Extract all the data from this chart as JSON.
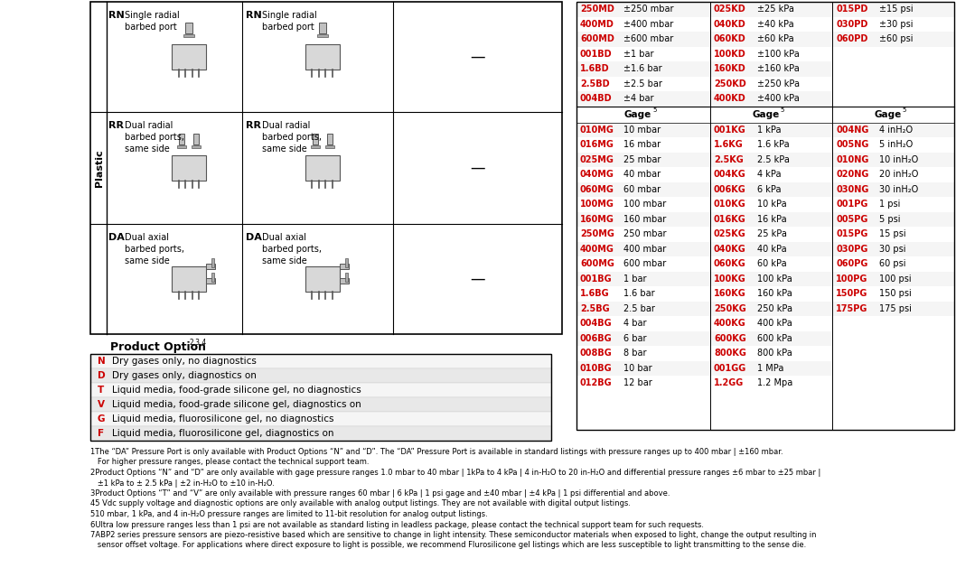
{
  "red_color": "#cc0000",
  "black_color": "#000000",
  "row_bg_dark": "#e8e8e8",
  "row_bg_light": "#f5f5f5",
  "product_option_title": "Product Option",
  "product_option_superscript": "2,3,4",
  "product_options": [
    [
      "N",
      "Dry gases only, no diagnostics"
    ],
    [
      "D",
      "Dry gases only, diagnostics on"
    ],
    [
      "T",
      "Liquid media, food-grade silicone gel, no diagnostics"
    ],
    [
      "V",
      "Liquid media, food-grade silicone gel, diagnostics on"
    ],
    [
      "G",
      "Liquid media, fluorosilicone gel, no diagnostics"
    ],
    [
      "F",
      "Liquid media, fluorosilicone gel, diagnostics on"
    ]
  ],
  "footnotes": [
    [
      "1",
      "The “DA” Pressure Port is only available with Product Options “N” and “D”. The “DA” Pressure Port is available in standard listings with pressure ranges up to 400 mbar | ±160 mbar."
    ],
    [
      "",
      "   For higher pressure ranges, please contact the technical support team."
    ],
    [
      "2",
      "Product Options “N” and “D” are only available with gage pressure ranges 1.0 mbar to 40 mbar | 1kPa to 4 kPa | 4 in-H₂O to 20 in-H₂O and differential pressure ranges ±6 mbar to ±25 mbar |"
    ],
    [
      "",
      "   ±1 kPa to ± 2.5 kPa | ±2 in-H₂O to ±10 in-H₂O."
    ],
    [
      "3",
      "Product Options “T” and “V” are only available with pressure ranges 60 mbar | 6 kPa | 1 psi gage and ±40 mbar | ±4 kPa | 1 psi differential and above."
    ],
    [
      "4",
      "5 Vdc supply voltage and diagnostic options are only available with analog output listings. They are not available with digital output listings."
    ],
    [
      "5",
      "10 mbar, 1 kPa, and 4 in-H₂O pressure ranges are limited to 11-bit resolution for analog output listings."
    ],
    [
      "6",
      "Ultra low pressure ranges less than 1 psi are not available as standard listing in leadless package, please contact the technical support team for such requests."
    ],
    [
      "7",
      "ABP2 series pressure sensors are piezo-resistive based which are sensitive to change in light intensity. These semiconductor materials when exposed to light, change the output resulting in"
    ],
    [
      "",
      "   sensor offset voltage. For applications where direct exposure to light is possible, we recommend Flurosilicone gel listings which are less susceptible to light transmitting to the sense die."
    ]
  ],
  "left_sections": [
    {
      "pt1": "RN",
      "d1": "Single radial\nbarbed port",
      "pt2": "RN",
      "d2": "Single radial\nbarbed port"
    },
    {
      "pt1": "RR",
      "d1": "Dual radial\nbarbed ports,\nsame side",
      "pt2": "RR",
      "d2": "Dual radial\nbarbed ports,\nsame side"
    },
    {
      "pt1": "DA",
      "d1": "Dual axial\nbarbed ports,\nsame side",
      "pt2": "DA",
      "d2": "Dual axial\nbarbed ports,\nsame side"
    }
  ],
  "diff_col1": [
    [
      "250MD",
      "±250 mbar"
    ],
    [
      "400MD",
      "±400 mbar"
    ],
    [
      "600MD",
      "±600 mbar"
    ],
    [
      "001BD",
      "±1 bar"
    ],
    [
      "1.6BD",
      "±1.6 bar"
    ],
    [
      "2.5BD",
      "±2.5 bar"
    ],
    [
      "004BD",
      "±4 bar"
    ]
  ],
  "diff_col2": [
    [
      "025KD",
      "±25 kPa"
    ],
    [
      "040KD",
      "±40 kPa"
    ],
    [
      "060KD",
      "±60 kPa"
    ],
    [
      "100KD",
      "±100 kPa"
    ],
    [
      "160KD",
      "±160 kPa"
    ],
    [
      "250KD",
      "±250 kPa"
    ],
    [
      "400KD",
      "±400 kPa"
    ]
  ],
  "diff_col3": [
    [
      "015PD",
      "±15 psi"
    ],
    [
      "030PD",
      "±30 psi"
    ],
    [
      "060PD",
      "±60 psi"
    ]
  ],
  "gage_col1": [
    [
      "010MG",
      "10 mbar"
    ],
    [
      "016MG",
      "16 mbar"
    ],
    [
      "025MG",
      "25 mbar"
    ],
    [
      "040MG",
      "40 mbar"
    ],
    [
      "060MG",
      "60 mbar"
    ],
    [
      "100MG",
      "100 mbar"
    ],
    [
      "160MG",
      "160 mbar"
    ],
    [
      "250MG",
      "250 mbar"
    ],
    [
      "400MG",
      "400 mbar"
    ],
    [
      "600MG",
      "600 mbar"
    ],
    [
      "001BG",
      "1 bar"
    ],
    [
      "1.6BG",
      "1.6 bar"
    ],
    [
      "2.5BG",
      "2.5 bar"
    ],
    [
      "004BG",
      "4 bar"
    ],
    [
      "006BG",
      "6 bar"
    ],
    [
      "008BG",
      "8 bar"
    ],
    [
      "010BG",
      "10 bar"
    ],
    [
      "012BG",
      "12 bar"
    ]
  ],
  "gage_col2": [
    [
      "001KG",
      "1 kPa"
    ],
    [
      "1.6KG",
      "1.6 kPa"
    ],
    [
      "2.5KG",
      "2.5 kPa"
    ],
    [
      "004KG",
      "4 kPa"
    ],
    [
      "006KG",
      "6 kPa"
    ],
    [
      "010KG",
      "10 kPa"
    ],
    [
      "016KG",
      "16 kPa"
    ],
    [
      "025KG",
      "25 kPa"
    ],
    [
      "040KG",
      "40 kPa"
    ],
    [
      "060KG",
      "60 kPa"
    ],
    [
      "100KG",
      "100 kPa"
    ],
    [
      "160KG",
      "160 kPa"
    ],
    [
      "250KG",
      "250 kPa"
    ],
    [
      "400KG",
      "400 kPa"
    ],
    [
      "600KG",
      "600 kPa"
    ],
    [
      "800KG",
      "800 kPa"
    ],
    [
      "001GG",
      "1 MPa"
    ],
    [
      "1.2GG",
      "1.2 Mpa"
    ]
  ],
  "gage_col3": [
    [
      "004NG",
      "4 inH₂O"
    ],
    [
      "005NG",
      "5 inH₂O"
    ],
    [
      "010NG",
      "10 inH₂O"
    ],
    [
      "020NG",
      "20 inH₂O"
    ],
    [
      "030NG",
      "30 inH₂O"
    ],
    [
      "001PG",
      "1 psi"
    ],
    [
      "005PG",
      "5 psi"
    ],
    [
      "015PG",
      "15 psi"
    ],
    [
      "030PG",
      "30 psi"
    ],
    [
      "060PG",
      "60 psi"
    ],
    [
      "100PG",
      "100 psi"
    ],
    [
      "150PG",
      "150 psi"
    ],
    [
      "175PG",
      "175 psi"
    ]
  ]
}
